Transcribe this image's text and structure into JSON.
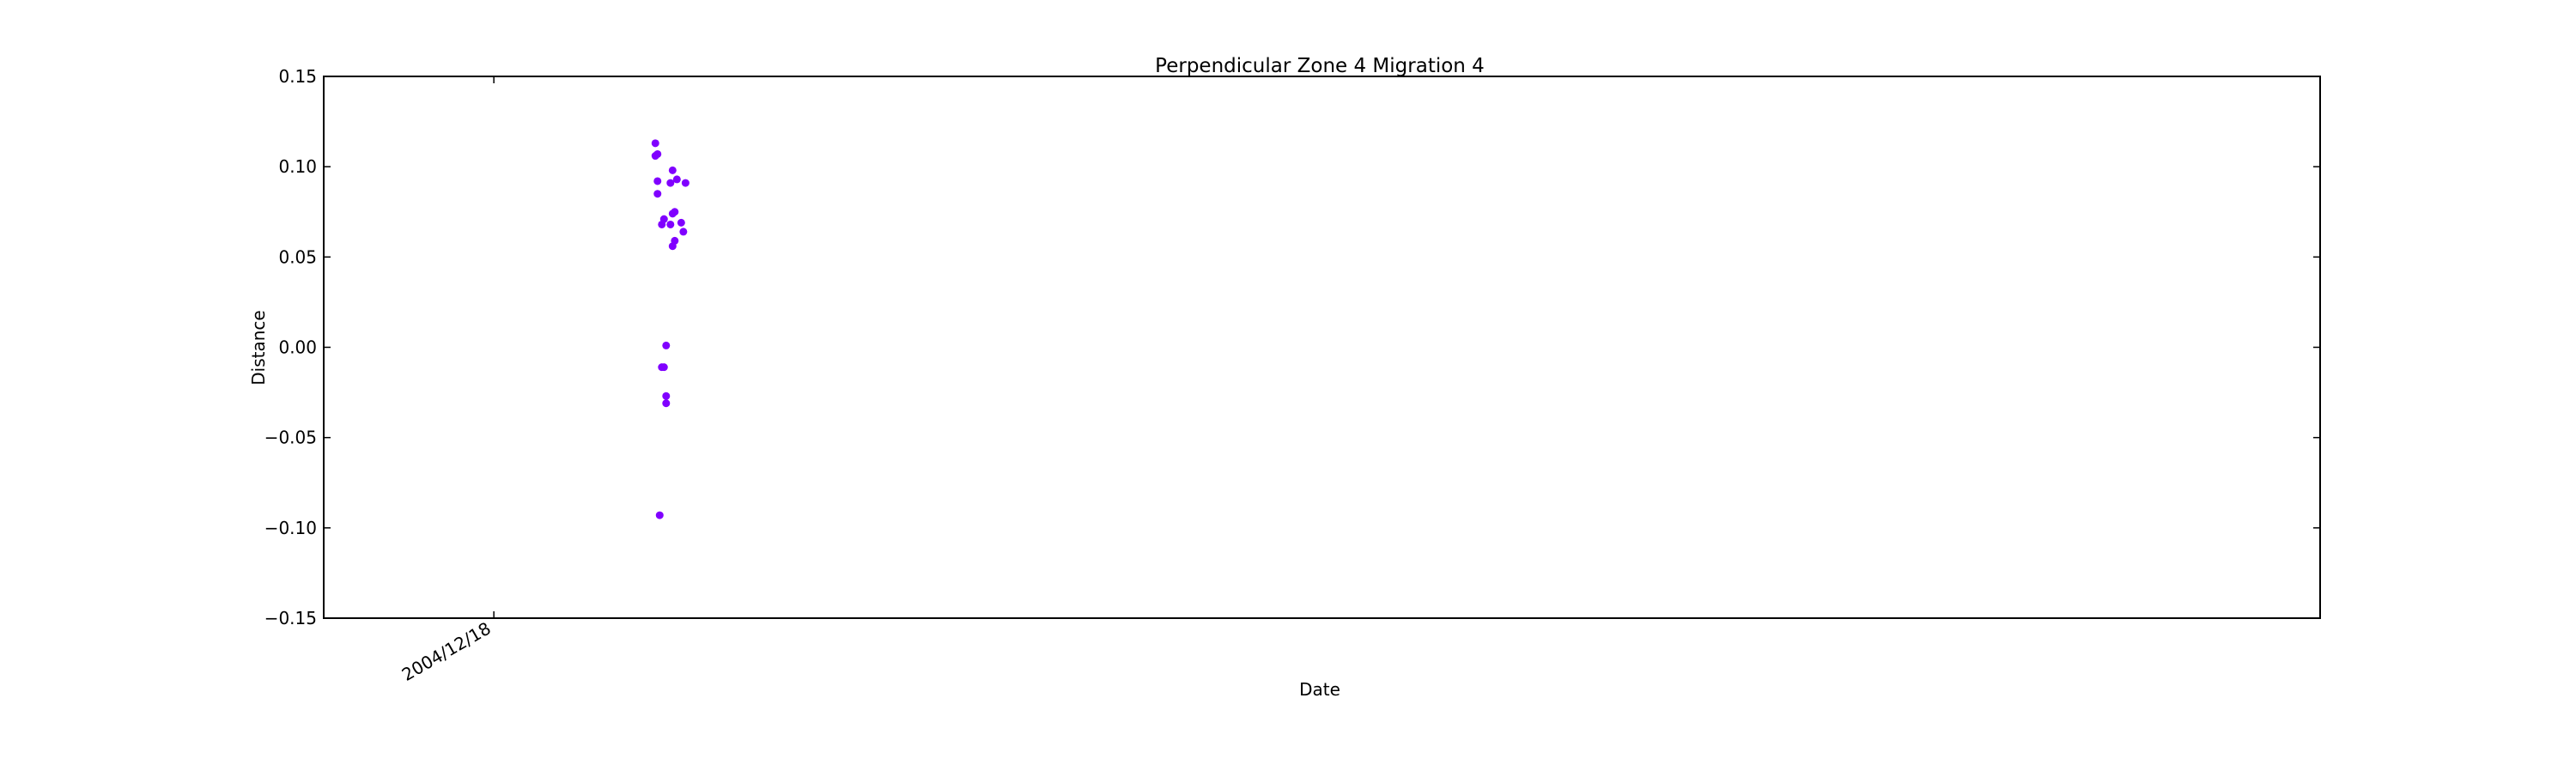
{
  "chart_data": {
    "type": "scatter",
    "title": "Perpendicular Zone 4 Migration 4",
    "xlabel": "Date",
    "ylabel": "Distance",
    "ylim": [
      -0.15,
      0.15
    ],
    "yticks": [
      "0.15",
      "0.10",
      "0.05",
      "0.00",
      "−0.05",
      "−0.10",
      "−0.15"
    ],
    "ytick_values": [
      0.15,
      0.1,
      0.05,
      0.0,
      -0.05,
      -0.1,
      -0.15
    ],
    "xlim": [
      "2004-09-30",
      "2007-04-15"
    ],
    "xticks": [
      {
        "date": "2004-12-18",
        "label": "2004/12/18"
      }
    ],
    "grid": false,
    "legend": "none",
    "marker_color": "#8000ff",
    "series": [
      {
        "points": [
          {
            "x": "2005-03-03",
            "y": 0.113
          },
          {
            "x": "2005-03-03",
            "y": 0.106
          },
          {
            "x": "2005-03-04",
            "y": 0.107
          },
          {
            "x": "2005-03-04",
            "y": 0.092
          },
          {
            "x": "2005-03-04",
            "y": 0.085
          },
          {
            "x": "2005-03-05",
            "y": -0.093
          },
          {
            "x": "2005-03-06",
            "y": 0.068
          },
          {
            "x": "2005-03-06",
            "y": -0.011
          },
          {
            "x": "2005-03-07",
            "y": -0.011
          },
          {
            "x": "2005-03-07",
            "y": 0.071
          },
          {
            "x": "2005-03-08",
            "y": 0.001
          },
          {
            "x": "2005-03-08",
            "y": -0.027
          },
          {
            "x": "2005-03-08",
            "y": -0.031
          },
          {
            "x": "2005-03-10",
            "y": 0.091
          },
          {
            "x": "2005-03-10",
            "y": 0.068
          },
          {
            "x": "2005-03-11",
            "y": 0.074
          },
          {
            "x": "2005-03-11",
            "y": 0.056
          },
          {
            "x": "2005-03-11",
            "y": 0.098
          },
          {
            "x": "2005-03-12",
            "y": 0.075
          },
          {
            "x": "2005-03-12",
            "y": 0.059
          },
          {
            "x": "2005-03-13",
            "y": 0.093
          },
          {
            "x": "2005-03-15",
            "y": 0.069
          },
          {
            "x": "2005-03-16",
            "y": 0.064
          },
          {
            "x": "2005-03-17",
            "y": 0.091
          }
        ]
      }
    ]
  }
}
